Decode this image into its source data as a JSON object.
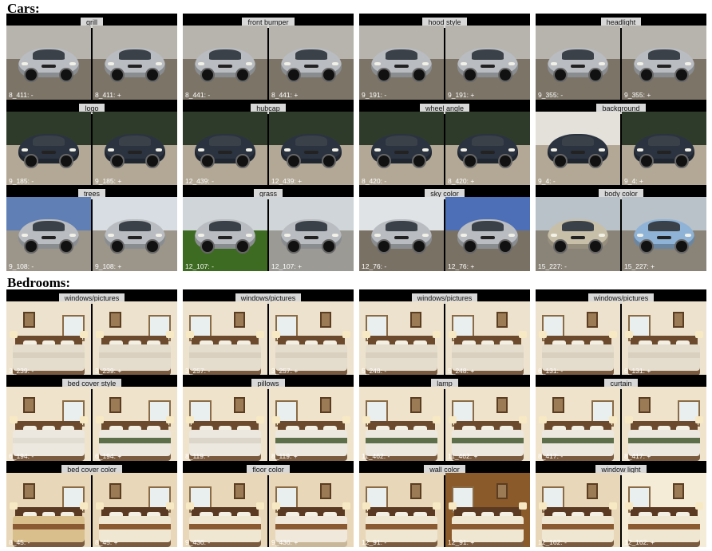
{
  "sections": {
    "cars_title": "Cars:",
    "bedrooms_title": "Bedrooms:"
  },
  "cars": [
    {
      "label": "grill",
      "left": "8_411: -",
      "right": "8_411: +"
    },
    {
      "label": "front bumper",
      "left": "8_441: -",
      "right": "8_441: +"
    },
    {
      "label": "hood style",
      "left": "9_191: -",
      "right": "9_191: +"
    },
    {
      "label": "headlight",
      "left": "9_355: -",
      "right": "9_355: +"
    },
    {
      "label": "logo",
      "left": "9_185: -",
      "right": "9_185: +"
    },
    {
      "label": "hubcap",
      "left": "12_439: -",
      "right": "12_439: +"
    },
    {
      "label": "wheel angle",
      "left": "8_420: -",
      "right": "8_420: +"
    },
    {
      "label": "background",
      "left": "9_4: -",
      "right": "9_4: +"
    },
    {
      "label": "trees",
      "left": "9_108: -",
      "right": "9_108: +"
    },
    {
      "label": "grass",
      "left": "12_107: -",
      "right": "12_107: +"
    },
    {
      "label": "sky color",
      "left": "12_76: -",
      "right": "12_76: +"
    },
    {
      "label": "body color",
      "left": "15_227: -",
      "right": "15_227: +"
    }
  ],
  "bedrooms": [
    {
      "label": "windows/pictures",
      "left": "3_239: -",
      "right": "3_239: +"
    },
    {
      "label": "windows/pictures",
      "left": "3_257: -",
      "right": "3_257: +"
    },
    {
      "label": "windows/pictures",
      "left": "5_248: -",
      "right": "5_248: +"
    },
    {
      "label": "windows/pictures",
      "left": "6_131: -",
      "right": "6_131: +"
    },
    {
      "label": "bed cover style",
      "left": "6_194: -",
      "right": "6_194: +"
    },
    {
      "label": "pillows",
      "left": "8_119: -",
      "right": "8_119: +"
    },
    {
      "label": "lamp",
      "left": "11_462: -",
      "right": "11_462: +"
    },
    {
      "label": "curtain",
      "left": "8_417: -",
      "right": "8_417: +"
    },
    {
      "label": "bed cover color",
      "left": "8_45: -",
      "right": "8_45: +"
    },
    {
      "label": "floor color",
      "left": "9_436: -",
      "right": "9_436: +"
    },
    {
      "label": "wall color",
      "left": "12_91: -",
      "right": "12_91: +"
    },
    {
      "label": "window light",
      "left": "12_162: -",
      "right": "12_162: +"
    }
  ],
  "colors": {
    "panel_bg": "#000000",
    "label_bg": "#d8d8d8",
    "car_silver": "#b9bcc0",
    "car_navy": "#2b3340",
    "car_blue": "#8fb3d6",
    "bed_wall": "#efe3cc",
    "bed_runner_green": "#5d6e4a",
    "bed_runner_brown": "#8a5a32"
  }
}
